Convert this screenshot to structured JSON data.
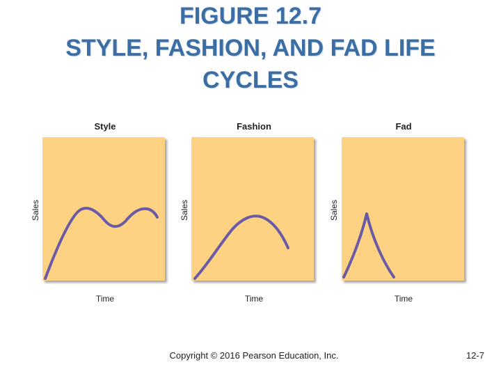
{
  "title": {
    "line1": "FIGURE 12.7",
    "line2": "STYLE, FASHION, AND FAD LIFE",
    "line3": "CYCLES"
  },
  "panels": [
    {
      "name": "style",
      "heading": "Style",
      "ylabel": "Sales",
      "xlabel": "Time"
    },
    {
      "name": "fashion",
      "heading": "Fashion",
      "ylabel": "Sales",
      "xlabel": "Time"
    },
    {
      "name": "fad",
      "heading": "Fad",
      "ylabel": "Sales",
      "xlabel": "Time"
    }
  ],
  "colors": {
    "panel_fill": "#fdd383",
    "curve": "#6b5aa6",
    "title": "#3a6ea5"
  },
  "footer": {
    "copyright": "Copyright © 2016 Pearson Education, Inc.",
    "page": "12-7"
  }
}
